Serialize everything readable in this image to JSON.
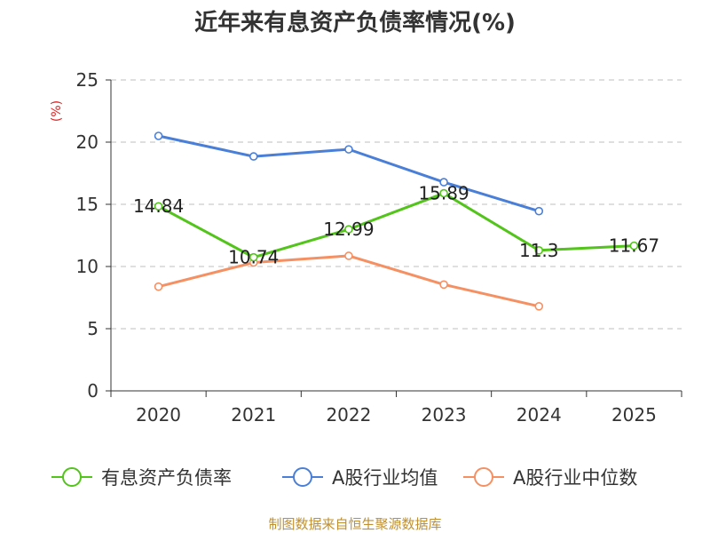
{
  "chart_data": {
    "type": "line",
    "title": "近年来有息资产负债率情况(%)",
    "ylabel": "(%)",
    "xlabel": "",
    "categories": [
      "2020",
      "2021",
      "2022",
      "2023",
      "2024",
      "2025"
    ],
    "ylim": [
      0,
      25
    ],
    "yticks": [
      0,
      5,
      10,
      15,
      20,
      25
    ],
    "grid": true,
    "legend_position": "bottom",
    "series": [
      {
        "name": "有息资产负债率",
        "color": "#52c41a",
        "values": [
          14.84,
          10.74,
          12.99,
          15.89,
          11.3,
          11.67
        ],
        "labels": [
          "14.84",
          "10.74",
          "12.99",
          "15.89",
          "11.3",
          "11.67"
        ]
      },
      {
        "name": "A股行业均值",
        "color": "#4a7fd8",
        "values": [
          20.5,
          18.85,
          19.42,
          16.78,
          14.45,
          null
        ]
      },
      {
        "name": "A股行业中位数",
        "color": "#f59063",
        "values": [
          8.38,
          10.32,
          10.86,
          8.55,
          6.8,
          null
        ]
      }
    ],
    "source": "制图数据来自恒生聚源数据库"
  }
}
